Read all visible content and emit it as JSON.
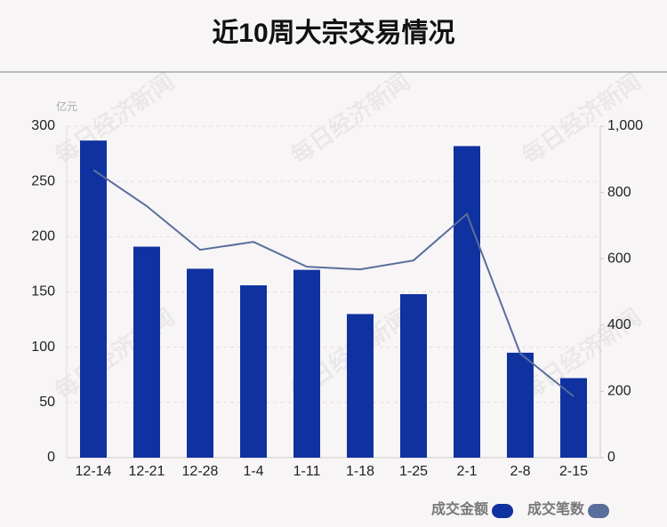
{
  "chart_data": {
    "type": "bar_line",
    "title": "近10周大宗交易情况",
    "y_unit": "亿元",
    "watermark": "每日经济新闻",
    "categories": [
      "12-14",
      "12-21",
      "12-28",
      "1-4",
      "1-11",
      "1-18",
      "1-25",
      "2-1",
      "2-8",
      "2-15"
    ],
    "series": [
      {
        "name": "成交金额",
        "type": "bar",
        "color": "#0f32a0",
        "values": [
          287,
          191,
          171,
          156,
          170,
          130,
          148,
          282,
          95,
          72
        ]
      },
      {
        "name": "成交笔数",
        "type": "line",
        "axis": "y2",
        "color": "#5a6e9c",
        "values": [
          868,
          759,
          627,
          651,
          576,
          568,
          595,
          735,
          314,
          185
        ]
      }
    ],
    "ylim": [
      0,
      300
    ],
    "yticks": [
      0,
      50,
      100,
      150,
      200,
      250,
      300
    ],
    "y2lim": [
      0,
      1000
    ],
    "y2ticks": [
      0,
      200,
      400,
      600,
      800,
      {
        "value": 1000,
        "label": "1,000"
      }
    ],
    "grid": true
  }
}
